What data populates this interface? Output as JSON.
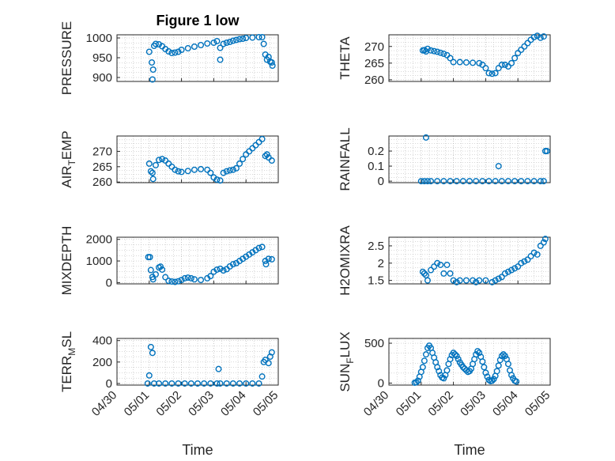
{
  "figure": {
    "title": "Figure 1 low",
    "marker_color": "#0072BD",
    "axis_color": "#262626",
    "grid_color": "#b0b0b0"
  },
  "chart_data": [
    {
      "type": "scatter",
      "panel": "PRESSURE",
      "ylabel": "PRESSURE",
      "title": "Figure 1 low",
      "xlim": [
        "04/30",
        "05/05"
      ],
      "ylim": [
        890,
        1008
      ],
      "yticks": [
        900,
        950,
        1000
      ],
      "xticks": [],
      "xlabel": "",
      "grid": true,
      "marker": "open-circle",
      "points": [
        [
          1.0,
          965
        ],
        [
          1.08,
          938
        ],
        [
          1.12,
          920
        ],
        [
          1.1,
          895
        ],
        [
          1.15,
          980
        ],
        [
          1.2,
          985
        ],
        [
          1.3,
          984
        ],
        [
          1.4,
          979
        ],
        [
          1.5,
          972
        ],
        [
          1.6,
          966
        ],
        [
          1.7,
          962
        ],
        [
          1.8,
          963
        ],
        [
          1.9,
          965
        ],
        [
          2.0,
          970
        ],
        [
          2.2,
          974
        ],
        [
          2.4,
          978
        ],
        [
          2.6,
          982
        ],
        [
          2.8,
          986
        ],
        [
          3.0,
          988
        ],
        [
          3.1,
          992
        ],
        [
          3.2,
          945
        ],
        [
          3.2,
          975
        ],
        [
          3.3,
          985
        ],
        [
          3.4,
          988
        ],
        [
          3.5,
          990
        ],
        [
          3.6,
          993
        ],
        [
          3.7,
          995
        ],
        [
          3.8,
          997
        ],
        [
          3.9,
          998
        ],
        [
          4.0,
          1000
        ],
        [
          4.2,
          1001
        ],
        [
          4.4,
          1002
        ],
        [
          4.5,
          1002
        ],
        [
          4.55,
          985
        ],
        [
          4.6,
          958
        ],
        [
          4.65,
          945
        ],
        [
          4.7,
          952
        ],
        [
          4.75,
          940
        ],
        [
          4.8,
          938
        ],
        [
          4.82,
          930
        ]
      ]
    },
    {
      "type": "scatter",
      "panel": "THETA",
      "ylabel": "THETA",
      "title": "",
      "xlim": [
        "04/30",
        "05/05"
      ],
      "ylim": [
        259.5,
        273.5
      ],
      "yticks": [
        260,
        265,
        270
      ],
      "xticks": [],
      "xlabel": "",
      "grid": true,
      "marker": "open-circle",
      "points": [
        [
          1.05,
          268.8
        ],
        [
          1.1,
          268.9
        ],
        [
          1.15,
          268.5
        ],
        [
          1.2,
          269.3
        ],
        [
          1.3,
          268.8
        ],
        [
          1.4,
          268.6
        ],
        [
          1.5,
          268.4
        ],
        [
          1.6,
          268.1
        ],
        [
          1.7,
          267.8
        ],
        [
          1.8,
          267.4
        ],
        [
          1.9,
          266.5
        ],
        [
          2.0,
          265.3
        ],
        [
          2.2,
          265.3
        ],
        [
          2.4,
          265.2
        ],
        [
          2.6,
          265.1
        ],
        [
          2.8,
          265.0
        ],
        [
          2.9,
          264.5
        ],
        [
          3.0,
          263.5
        ],
        [
          3.1,
          262.0
        ],
        [
          3.2,
          261.8
        ],
        [
          3.3,
          262.0
        ],
        [
          3.4,
          263.5
        ],
        [
          3.5,
          264.5
        ],
        [
          3.6,
          264.5
        ],
        [
          3.7,
          264.0
        ],
        [
          3.8,
          265.0
        ],
        [
          3.9,
          266.5
        ],
        [
          4.0,
          268.0
        ],
        [
          4.1,
          269.0
        ],
        [
          4.2,
          270.0
        ],
        [
          4.3,
          271.0
        ],
        [
          4.4,
          272.0
        ],
        [
          4.5,
          272.8
        ],
        [
          4.6,
          273.2
        ],
        [
          4.7,
          272.6
        ],
        [
          4.8,
          273.0
        ]
      ]
    },
    {
      "type": "scatter",
      "panel": "AIR_TEMP",
      "ylabel": "AIR",
      "ylabel_sub": "T",
      "ylabel_suffix": "EMP",
      "title": "",
      "xlim": [
        "04/30",
        "05/05"
      ],
      "ylim": [
        259.8,
        275.0
      ],
      "yticks": [
        260,
        265,
        270
      ],
      "xticks": [],
      "xlabel": "",
      "grid": true,
      "marker": "open-circle",
      "points": [
        [
          1.0,
          266.0
        ],
        [
          1.05,
          263.5
        ],
        [
          1.1,
          263.0
        ],
        [
          1.12,
          261.0
        ],
        [
          1.2,
          265.5
        ],
        [
          1.3,
          267.2
        ],
        [
          1.4,
          267.5
        ],
        [
          1.5,
          267.0
        ],
        [
          1.6,
          266.0
        ],
        [
          1.7,
          265.0
        ],
        [
          1.8,
          264.0
        ],
        [
          1.9,
          263.5
        ],
        [
          2.0,
          263.3
        ],
        [
          2.2,
          263.6
        ],
        [
          2.4,
          264.0
        ],
        [
          2.6,
          264.2
        ],
        [
          2.8,
          264.0
        ],
        [
          2.9,
          263.0
        ],
        [
          3.0,
          261.5
        ],
        [
          3.1,
          260.8
        ],
        [
          3.2,
          260.5
        ],
        [
          3.3,
          263.0
        ],
        [
          3.4,
          263.5
        ],
        [
          3.5,
          263.8
        ],
        [
          3.6,
          264.0
        ],
        [
          3.7,
          264.5
        ],
        [
          3.8,
          266.0
        ],
        [
          3.9,
          267.5
        ],
        [
          4.0,
          269.0
        ],
        [
          4.1,
          270.0
        ],
        [
          4.2,
          271.0
        ],
        [
          4.3,
          272.0
        ],
        [
          4.4,
          273.0
        ],
        [
          4.5,
          274.0
        ],
        [
          4.6,
          268.5
        ],
        [
          4.65,
          269.0
        ],
        [
          4.7,
          268.0
        ],
        [
          4.8,
          267.0
        ]
      ]
    },
    {
      "type": "scatter",
      "panel": "RAINFALL",
      "ylabel": "RAINFALL",
      "title": "",
      "xlim": [
        "04/30",
        "05/05"
      ],
      "ylim": [
        -0.01,
        0.3
      ],
      "yticks": [
        0,
        0.1,
        0.2
      ],
      "ytick_labels": [
        "0",
        "0.1",
        "0.2"
      ],
      "xticks": [],
      "xlabel": "",
      "grid": true,
      "marker": "open-circle",
      "points": [
        [
          1.0,
          0
        ],
        [
          1.1,
          0
        ],
        [
          1.15,
          0.29
        ],
        [
          1.2,
          0
        ],
        [
          1.3,
          0
        ],
        [
          1.5,
          0
        ],
        [
          1.7,
          0
        ],
        [
          1.9,
          0
        ],
        [
          2.1,
          0
        ],
        [
          2.3,
          0
        ],
        [
          2.5,
          0
        ],
        [
          2.7,
          0
        ],
        [
          2.9,
          0
        ],
        [
          3.1,
          0
        ],
        [
          3.3,
          0
        ],
        [
          3.4,
          0.1
        ],
        [
          3.5,
          0
        ],
        [
          3.7,
          0
        ],
        [
          3.9,
          0
        ],
        [
          4.1,
          0
        ],
        [
          4.3,
          0
        ],
        [
          4.5,
          0
        ],
        [
          4.7,
          0
        ],
        [
          4.8,
          0
        ],
        [
          4.85,
          0.2
        ],
        [
          4.9,
          0.2
        ]
      ]
    },
    {
      "type": "scatter",
      "panel": "MIXDEPTH",
      "ylabel": "MIXDEPTH",
      "title": "",
      "xlim": [
        "04/30",
        "05/05"
      ],
      "ylim": [
        -60,
        2100
      ],
      "yticks": [
        0,
        1000,
        2000
      ],
      "xticks": [],
      "xlabel": "",
      "grid": true,
      "marker": "open-circle",
      "points": [
        [
          0.97,
          1180
        ],
        [
          1.02,
          1180
        ],
        [
          1.05,
          580
        ],
        [
          1.1,
          260
        ],
        [
          1.12,
          150
        ],
        [
          1.2,
          380
        ],
        [
          1.3,
          700
        ],
        [
          1.35,
          740
        ],
        [
          1.4,
          600
        ],
        [
          1.5,
          250
        ],
        [
          1.6,
          80
        ],
        [
          1.7,
          50
        ],
        [
          1.8,
          30
        ],
        [
          1.9,
          60
        ],
        [
          2.0,
          120
        ],
        [
          2.1,
          200
        ],
        [
          2.2,
          230
        ],
        [
          2.3,
          200
        ],
        [
          2.4,
          150
        ],
        [
          2.6,
          120
        ],
        [
          2.8,
          200
        ],
        [
          2.9,
          300
        ],
        [
          3.0,
          500
        ],
        [
          3.1,
          600
        ],
        [
          3.2,
          640
        ],
        [
          3.3,
          560
        ],
        [
          3.4,
          620
        ],
        [
          3.5,
          750
        ],
        [
          3.6,
          850
        ],
        [
          3.7,
          900
        ],
        [
          3.8,
          1000
        ],
        [
          3.9,
          1100
        ],
        [
          4.0,
          1200
        ],
        [
          4.1,
          1300
        ],
        [
          4.2,
          1400
        ],
        [
          4.3,
          1500
        ],
        [
          4.4,
          1600
        ],
        [
          4.5,
          1650
        ],
        [
          4.6,
          1000
        ],
        [
          4.62,
          850
        ],
        [
          4.7,
          1100
        ],
        [
          4.8,
          1080
        ]
      ]
    },
    {
      "type": "scatter",
      "panel": "H2OMIXRA",
      "ylabel": "H2OMIXRA",
      "title": "",
      "xlim": [
        "04/30",
        "05/05"
      ],
      "ylim": [
        1.4,
        2.75
      ],
      "yticks": [
        1.5,
        2,
        2.5
      ],
      "ytick_labels": [
        "1.5",
        "2",
        "2.5"
      ],
      "xticks": [],
      "xlabel": "",
      "grid": true,
      "marker": "open-circle",
      "points": [
        [
          1.05,
          1.75
        ],
        [
          1.1,
          1.7
        ],
        [
          1.15,
          1.65
        ],
        [
          1.2,
          1.5
        ],
        [
          1.3,
          1.8
        ],
        [
          1.4,
          1.9
        ],
        [
          1.5,
          2.0
        ],
        [
          1.6,
          1.95
        ],
        [
          1.7,
          1.7
        ],
        [
          1.8,
          1.95
        ],
        [
          1.9,
          1.7
        ],
        [
          2.0,
          1.5
        ],
        [
          2.1,
          1.45
        ],
        [
          2.2,
          1.5
        ],
        [
          2.4,
          1.5
        ],
        [
          2.6,
          1.5
        ],
        [
          2.7,
          1.45
        ],
        [
          2.8,
          1.5
        ],
        [
          3.0,
          1.5
        ],
        [
          3.2,
          1.45
        ],
        [
          3.3,
          1.5
        ],
        [
          3.4,
          1.55
        ],
        [
          3.5,
          1.6
        ],
        [
          3.6,
          1.7
        ],
        [
          3.7,
          1.75
        ],
        [
          3.8,
          1.8
        ],
        [
          3.9,
          1.85
        ],
        [
          4.0,
          1.9
        ],
        [
          4.1,
          2.0
        ],
        [
          4.2,
          2.05
        ],
        [
          4.3,
          2.1
        ],
        [
          4.4,
          2.2
        ],
        [
          4.5,
          2.3
        ],
        [
          4.6,
          2.25
        ],
        [
          4.7,
          2.5
        ],
        [
          4.8,
          2.6
        ],
        [
          4.85,
          2.7
        ]
      ]
    },
    {
      "type": "scatter",
      "panel": "TERR_MSL",
      "ylabel": "TERR",
      "ylabel_sub": "M",
      "ylabel_suffix": "SL",
      "title": "",
      "xlim": [
        "04/30",
        "05/05"
      ],
      "ylim": [
        -15,
        420
      ],
      "yticks": [
        0,
        200,
        400
      ],
      "xlabel": "Time",
      "grid": true,
      "marker": "open-circle",
      "xticks": [
        0,
        1,
        2,
        3,
        4,
        5
      ],
      "xtick_labels": [
        "04/30",
        "05/01",
        "05/02",
        "05/03",
        "05/04",
        "05/05"
      ],
      "points": [
        [
          0.95,
          0
        ],
        [
          1.0,
          75
        ],
        [
          1.05,
          340
        ],
        [
          1.1,
          285
        ],
        [
          1.15,
          0
        ],
        [
          1.3,
          0
        ],
        [
          1.5,
          0
        ],
        [
          1.7,
          0
        ],
        [
          1.9,
          0
        ],
        [
          2.1,
          0
        ],
        [
          2.3,
          0
        ],
        [
          2.5,
          0
        ],
        [
          2.7,
          0
        ],
        [
          2.9,
          0
        ],
        [
          3.1,
          0
        ],
        [
          3.15,
          135
        ],
        [
          3.2,
          0
        ],
        [
          3.4,
          0
        ],
        [
          3.6,
          0
        ],
        [
          3.8,
          0
        ],
        [
          4.0,
          0
        ],
        [
          4.2,
          0
        ],
        [
          4.4,
          0
        ],
        [
          4.5,
          65
        ],
        [
          4.55,
          200
        ],
        [
          4.6,
          220
        ],
        [
          4.7,
          190
        ],
        [
          4.75,
          250
        ],
        [
          4.8,
          290
        ]
      ]
    },
    {
      "type": "scatter",
      "panel": "SUN_FLUX",
      "ylabel": "SUN",
      "ylabel_sub": "F",
      "ylabel_suffix": "LUX",
      "title": "",
      "xlim": [
        "04/30",
        "05/05"
      ],
      "ylim": [
        -25,
        560
      ],
      "yticks": [
        0,
        500
      ],
      "xlabel": "Time",
      "grid": true,
      "marker": "open-circle",
      "xticks": [
        0,
        1,
        2,
        3,
        4,
        5
      ],
      "xtick_labels": [
        "04/30",
        "05/01",
        "05/02",
        "05/03",
        "05/04",
        "05/05"
      ],
      "points": [
        [
          0.8,
          5
        ],
        [
          0.85,
          10
        ],
        [
          0.9,
          30
        ],
        [
          0.95,
          80
        ],
        [
          1.0,
          140
        ],
        [
          1.05,
          200
        ],
        [
          1.1,
          280
        ],
        [
          1.15,
          360
        ],
        [
          1.2,
          440
        ],
        [
          1.25,
          470
        ],
        [
          1.3,
          440
        ],
        [
          1.35,
          380
        ],
        [
          1.4,
          320
        ],
        [
          1.45,
          260
        ],
        [
          1.5,
          200
        ],
        [
          1.55,
          150
        ],
        [
          1.6,
          100
        ],
        [
          1.65,
          70
        ],
        [
          1.7,
          60
        ],
        [
          1.75,
          100
        ],
        [
          1.8,
          160
        ],
        [
          1.85,
          240
        ],
        [
          1.9,
          300
        ],
        [
          1.95,
          350
        ],
        [
          2.0,
          380
        ],
        [
          2.05,
          360
        ],
        [
          2.1,
          340
        ],
        [
          2.15,
          300
        ],
        [
          2.2,
          260
        ],
        [
          2.25,
          230
        ],
        [
          2.3,
          200
        ],
        [
          2.35,
          180
        ],
        [
          2.4,
          160
        ],
        [
          2.45,
          140
        ],
        [
          2.5,
          150
        ],
        [
          2.55,
          180
        ],
        [
          2.6,
          240
        ],
        [
          2.65,
          300
        ],
        [
          2.7,
          360
        ],
        [
          2.75,
          400
        ],
        [
          2.8,
          380
        ],
        [
          2.85,
          330
        ],
        [
          2.9,
          270
        ],
        [
          2.95,
          200
        ],
        [
          3.0,
          130
        ],
        [
          3.05,
          80
        ],
        [
          3.1,
          40
        ],
        [
          3.15,
          25
        ],
        [
          3.2,
          30
        ],
        [
          3.25,
          50
        ],
        [
          3.3,
          90
        ],
        [
          3.35,
          150
        ],
        [
          3.4,
          220
        ],
        [
          3.45,
          290
        ],
        [
          3.5,
          340
        ],
        [
          3.55,
          360
        ],
        [
          3.6,
          340
        ],
        [
          3.65,
          300
        ],
        [
          3.7,
          240
        ],
        [
          3.75,
          160
        ],
        [
          3.8,
          100
        ],
        [
          3.85,
          60
        ],
        [
          3.9,
          30
        ],
        [
          3.95,
          20
        ]
      ]
    }
  ]
}
